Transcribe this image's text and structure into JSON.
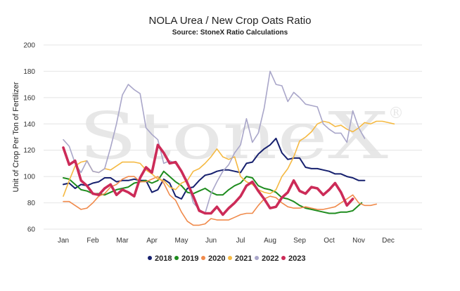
{
  "chart_data": {
    "type": "line",
    "title": "NOLA Urea / New Crop Oats Ratio",
    "subtitle": "Source: StoneX Ratio Calculations",
    "watermark": "StoneX",
    "watermark_mark": "®",
    "ylabel": "Unit of Crop Per Ton of Fertilizer",
    "xlabel": "",
    "ylim": [
      60,
      200
    ],
    "yticks": [
      60,
      80,
      100,
      120,
      140,
      160,
      180,
      200
    ],
    "months": [
      "Jan",
      "Feb",
      "Mar",
      "Apr",
      "May",
      "Jun",
      "Jul",
      "Aug",
      "Sep",
      "Oct",
      "Nov",
      "Dec"
    ],
    "grid": true,
    "legend_position": "bottom",
    "series": [
      {
        "name": "2018",
        "color": "#16206e",
        "width": 2,
        "values": [
          [
            0.0,
            94
          ],
          [
            0.2,
            95
          ],
          [
            0.4,
            91
          ],
          [
            0.6,
            94
          ],
          [
            0.8,
            93
          ],
          [
            1.0,
            95
          ],
          [
            1.2,
            96
          ],
          [
            1.4,
            99
          ],
          [
            1.6,
            99
          ],
          [
            1.8,
            96
          ],
          [
            2.0,
            97
          ],
          [
            2.2,
            97
          ],
          [
            2.4,
            98
          ],
          [
            2.6,
            97
          ],
          [
            2.8,
            97
          ],
          [
            3.0,
            88
          ],
          [
            3.2,
            90
          ],
          [
            3.4,
            98
          ],
          [
            3.6,
            95
          ],
          [
            3.8,
            85
          ],
          [
            4.0,
            83
          ],
          [
            4.2,
            91
          ],
          [
            4.4,
            92
          ],
          [
            4.6,
            97
          ],
          [
            4.8,
            101
          ],
          [
            5.0,
            102
          ],
          [
            5.2,
            104
          ],
          [
            5.4,
            105
          ],
          [
            5.6,
            105
          ],
          [
            5.8,
            104
          ],
          [
            6.0,
            103
          ],
          [
            6.2,
            110
          ],
          [
            6.4,
            111
          ],
          [
            6.6,
            117
          ],
          [
            6.8,
            121
          ],
          [
            7.0,
            124
          ],
          [
            7.2,
            129
          ],
          [
            7.4,
            118
          ],
          [
            7.6,
            113
          ],
          [
            7.8,
            114
          ],
          [
            8.0,
            114
          ],
          [
            8.2,
            107
          ],
          [
            8.4,
            106
          ],
          [
            8.6,
            106
          ],
          [
            8.8,
            105
          ],
          [
            9.0,
            104
          ],
          [
            9.2,
            102
          ],
          [
            9.4,
            102
          ],
          [
            9.6,
            100
          ],
          [
            9.8,
            99
          ],
          [
            10.0,
            97
          ],
          [
            10.2,
            97
          ]
        ]
      },
      {
        "name": "2019",
        "color": "#1e8c1e",
        "width": 2,
        "values": [
          [
            0.0,
            99
          ],
          [
            0.2,
            98
          ],
          [
            0.4,
            94
          ],
          [
            0.6,
            90
          ],
          [
            0.8,
            89
          ],
          [
            1.0,
            87
          ],
          [
            1.2,
            87
          ],
          [
            1.4,
            86
          ],
          [
            1.6,
            88
          ],
          [
            1.8,
            90
          ],
          [
            2.0,
            91
          ],
          [
            2.2,
            92
          ],
          [
            2.4,
            95
          ],
          [
            2.6,
            96
          ],
          [
            2.8,
            97
          ],
          [
            3.0,
            95
          ],
          [
            3.2,
            97
          ],
          [
            3.4,
            104
          ],
          [
            3.6,
            100
          ],
          [
            3.8,
            96
          ],
          [
            4.0,
            93
          ],
          [
            4.2,
            88
          ],
          [
            4.4,
            87
          ],
          [
            4.6,
            89
          ],
          [
            4.8,
            91
          ],
          [
            5.0,
            88
          ],
          [
            5.2,
            86
          ],
          [
            5.4,
            86
          ],
          [
            5.6,
            90
          ],
          [
            5.8,
            93
          ],
          [
            6.0,
            95
          ],
          [
            6.2,
            100
          ],
          [
            6.4,
            99
          ],
          [
            6.6,
            93
          ],
          [
            6.8,
            91
          ],
          [
            7.0,
            90
          ],
          [
            7.2,
            88
          ],
          [
            7.4,
            84
          ],
          [
            7.6,
            83
          ],
          [
            7.8,
            81
          ],
          [
            8.0,
            78
          ],
          [
            8.2,
            76
          ],
          [
            8.4,
            75
          ],
          [
            8.6,
            74
          ],
          [
            8.8,
            73
          ],
          [
            9.0,
            72
          ],
          [
            9.2,
            72
          ],
          [
            9.4,
            73
          ],
          [
            9.6,
            73
          ],
          [
            9.8,
            74
          ],
          [
            10.0,
            78
          ],
          [
            10.1,
            80
          ]
        ]
      },
      {
        "name": "2020",
        "color": "#f08a4b",
        "width": 1.6,
        "values": [
          [
            0.0,
            81
          ],
          [
            0.2,
            81
          ],
          [
            0.4,
            78
          ],
          [
            0.6,
            75
          ],
          [
            0.8,
            76
          ],
          [
            1.0,
            80
          ],
          [
            1.2,
            85
          ],
          [
            1.4,
            87
          ],
          [
            1.6,
            92
          ],
          [
            1.8,
            94
          ],
          [
            2.0,
            98
          ],
          [
            2.2,
            100
          ],
          [
            2.4,
            100
          ],
          [
            2.6,
            96
          ],
          [
            2.8,
            96
          ],
          [
            3.0,
            98
          ],
          [
            3.2,
            100
          ],
          [
            3.4,
            95
          ],
          [
            3.6,
            86
          ],
          [
            3.8,
            82
          ],
          [
            4.0,
            73
          ],
          [
            4.2,
            66
          ],
          [
            4.4,
            63
          ],
          [
            4.6,
            63
          ],
          [
            4.8,
            64
          ],
          [
            5.0,
            68
          ],
          [
            5.2,
            67
          ],
          [
            5.4,
            67
          ],
          [
            5.6,
            67
          ],
          [
            5.8,
            69
          ],
          [
            6.0,
            71
          ],
          [
            6.2,
            72
          ],
          [
            6.4,
            72
          ],
          [
            6.6,
            78
          ],
          [
            6.8,
            83
          ],
          [
            7.0,
            85
          ],
          [
            7.2,
            84
          ],
          [
            7.4,
            80
          ],
          [
            7.6,
            77
          ],
          [
            7.8,
            76
          ],
          [
            8.0,
            76
          ],
          [
            8.2,
            77
          ],
          [
            8.4,
            76
          ],
          [
            8.6,
            75
          ],
          [
            8.8,
            75
          ],
          [
            9.0,
            76
          ],
          [
            9.2,
            77
          ],
          [
            9.4,
            80
          ],
          [
            9.6,
            83
          ],
          [
            9.8,
            86
          ],
          [
            10.0,
            80
          ],
          [
            10.2,
            78
          ],
          [
            10.4,
            78
          ],
          [
            10.6,
            79
          ]
        ]
      },
      {
        "name": "2021",
        "color": "#f5b942",
        "width": 1.6,
        "values": [
          [
            0.0,
            85
          ],
          [
            0.2,
            97
          ],
          [
            0.4,
            108
          ],
          [
            0.6,
            111
          ],
          [
            0.8,
            112
          ],
          [
            1.0,
            104
          ],
          [
            1.2,
            103
          ],
          [
            1.4,
            106
          ],
          [
            1.6,
            105
          ],
          [
            1.8,
            108
          ],
          [
            2.0,
            111
          ],
          [
            2.2,
            111
          ],
          [
            2.4,
            111
          ],
          [
            2.6,
            110
          ],
          [
            2.8,
            105
          ],
          [
            3.0,
            102
          ],
          [
            3.2,
            98
          ],
          [
            3.4,
            97
          ],
          [
            3.6,
            92
          ],
          [
            3.8,
            90
          ],
          [
            4.0,
            95
          ],
          [
            4.2,
            97
          ],
          [
            4.4,
            104
          ],
          [
            4.6,
            106
          ],
          [
            4.8,
            110
          ],
          [
            5.0,
            115
          ],
          [
            5.2,
            121
          ],
          [
            5.4,
            115
          ],
          [
            5.6,
            113
          ],
          [
            5.8,
            115
          ],
          [
            6.0,
            100
          ],
          [
            6.2,
            96
          ],
          [
            6.4,
            94
          ],
          [
            6.6,
            90
          ],
          [
            6.8,
            88
          ],
          [
            7.0,
            87
          ],
          [
            7.2,
            90
          ],
          [
            7.4,
            100
          ],
          [
            7.6,
            106
          ],
          [
            7.8,
            115
          ],
          [
            8.0,
            127
          ],
          [
            8.2,
            130
          ],
          [
            8.4,
            134
          ],
          [
            8.6,
            140
          ],
          [
            8.8,
            142
          ],
          [
            9.0,
            141
          ],
          [
            9.2,
            138
          ],
          [
            9.4,
            139
          ],
          [
            9.6,
            136
          ],
          [
            9.8,
            134
          ],
          [
            10.0,
            137
          ],
          [
            10.2,
            141
          ],
          [
            10.4,
            140
          ],
          [
            10.6,
            142
          ],
          [
            10.8,
            142
          ],
          [
            11.0,
            141
          ],
          [
            11.2,
            140
          ]
        ]
      },
      {
        "name": "2022",
        "color": "#a9a6c9",
        "width": 1.6,
        "values": [
          [
            0.0,
            128
          ],
          [
            0.2,
            123
          ],
          [
            0.4,
            110
          ],
          [
            0.6,
            103
          ],
          [
            0.8,
            112
          ],
          [
            1.0,
            104
          ],
          [
            1.2,
            103
          ],
          [
            1.4,
            106
          ],
          [
            1.6,
            122
          ],
          [
            1.8,
            140
          ],
          [
            2.0,
            162
          ],
          [
            2.2,
            170
          ],
          [
            2.4,
            166
          ],
          [
            2.6,
            163
          ],
          [
            2.8,
            137
          ],
          [
            3.0,
            132
          ],
          [
            3.2,
            128
          ],
          [
            3.4,
            110
          ],
          [
            3.6,
            112
          ],
          [
            3.8,
            110
          ],
          [
            4.0,
            103
          ],
          [
            4.2,
            97
          ],
          [
            4.4,
            80
          ],
          [
            4.6,
            75
          ],
          [
            4.8,
            72
          ],
          [
            5.0,
            87
          ],
          [
            5.2,
            96
          ],
          [
            5.4,
            104
          ],
          [
            5.6,
            109
          ],
          [
            5.8,
            118
          ],
          [
            6.0,
            124
          ],
          [
            6.2,
            144
          ],
          [
            6.4,
            126
          ],
          [
            6.6,
            133
          ],
          [
            6.8,
            152
          ],
          [
            7.0,
            180
          ],
          [
            7.2,
            170
          ],
          [
            7.4,
            169
          ],
          [
            7.6,
            157
          ],
          [
            7.8,
            164
          ],
          [
            8.0,
            160
          ],
          [
            8.2,
            155
          ],
          [
            8.4,
            154
          ],
          [
            8.6,
            153
          ],
          [
            8.8,
            140
          ],
          [
            9.0,
            136
          ],
          [
            9.2,
            133
          ],
          [
            9.4,
            133
          ],
          [
            9.6,
            126
          ],
          [
            9.8,
            150
          ],
          [
            10.0,
            137
          ],
          [
            10.2,
            129
          ]
        ]
      },
      {
        "name": "2023",
        "color": "#cc2b58",
        "width": 3.6,
        "values": [
          [
            0.0,
            122
          ],
          [
            0.2,
            109
          ],
          [
            0.4,
            112
          ],
          [
            0.6,
            97
          ],
          [
            0.8,
            93
          ],
          [
            1.0,
            87
          ],
          [
            1.2,
            86
          ],
          [
            1.4,
            91
          ],
          [
            1.6,
            94
          ],
          [
            1.8,
            86
          ],
          [
            2.0,
            90
          ],
          [
            2.2,
            88
          ],
          [
            2.4,
            85
          ],
          [
            2.6,
            99
          ],
          [
            2.8,
            107
          ],
          [
            3.0,
            103
          ],
          [
            3.2,
            124
          ],
          [
            3.4,
            118
          ],
          [
            3.6,
            110
          ],
          [
            3.8,
            111
          ],
          [
            4.0,
            104
          ],
          [
            4.2,
            95
          ],
          [
            4.4,
            85
          ],
          [
            4.6,
            74
          ],
          [
            4.8,
            72
          ],
          [
            5.0,
            72
          ],
          [
            5.2,
            77
          ],
          [
            5.4,
            71
          ],
          [
            5.6,
            76
          ],
          [
            5.8,
            80
          ],
          [
            6.0,
            85
          ],
          [
            6.2,
            93
          ],
          [
            6.4,
            96
          ],
          [
            6.6,
            89
          ],
          [
            6.8,
            83
          ],
          [
            7.0,
            76
          ],
          [
            7.2,
            77
          ],
          [
            7.4,
            84
          ],
          [
            7.6,
            88
          ],
          [
            7.8,
            97
          ],
          [
            8.0,
            89
          ],
          [
            8.2,
            87
          ],
          [
            8.4,
            92
          ],
          [
            8.6,
            91
          ],
          [
            8.8,
            86
          ],
          [
            9.0,
            90
          ],
          [
            9.2,
            95
          ],
          [
            9.4,
            88
          ],
          [
            9.6,
            78
          ],
          [
            9.8,
            83
          ]
        ]
      }
    ]
  }
}
